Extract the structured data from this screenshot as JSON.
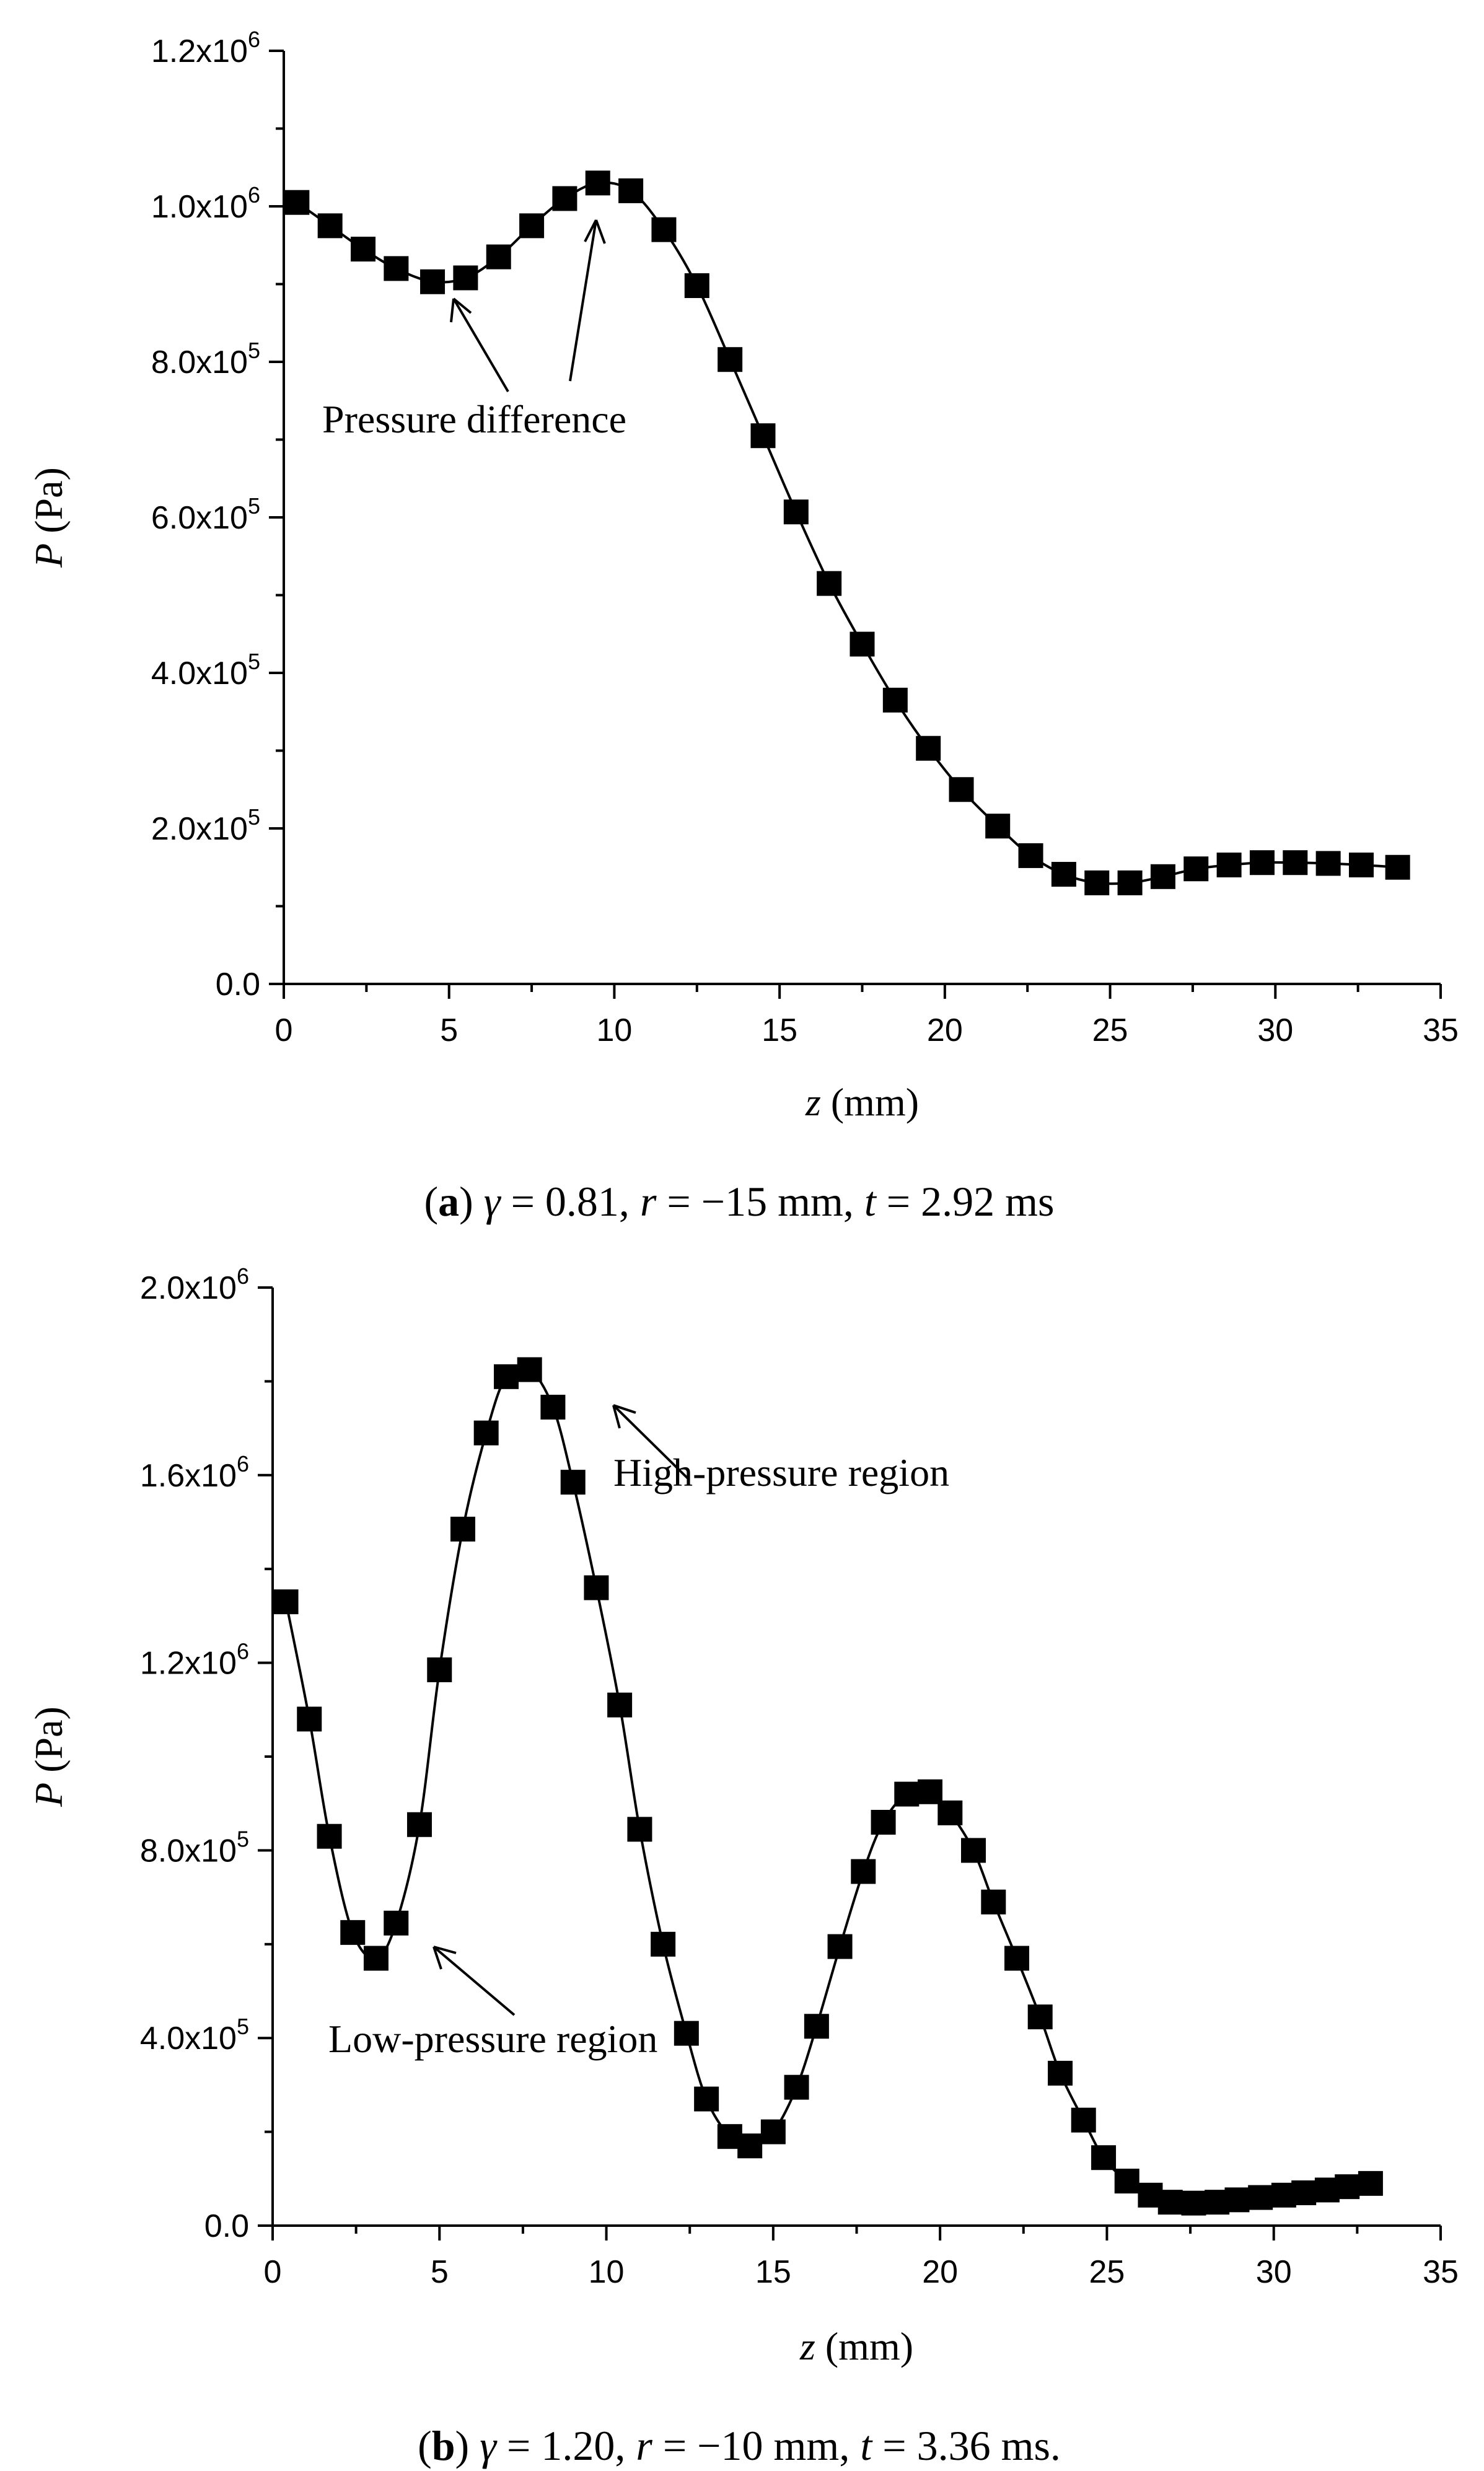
{
  "chart_data": [
    {
      "id": "a",
      "type": "line",
      "marker": "square",
      "xlabel": {
        "var": "z",
        "unit": " (mm)"
      },
      "ylabel": {
        "var": "P",
        "unit": " (Pa)"
      },
      "xlim": [
        0,
        35
      ],
      "ylim": [
        0,
        1200000
      ],
      "xticks": [
        0,
        5,
        10,
        15,
        20,
        25,
        30,
        35
      ],
      "yticks": [
        {
          "value": 0,
          "mant": "0.0",
          "exp": ""
        },
        {
          "value": 200000,
          "mant": "2.0x10",
          "exp": "5"
        },
        {
          "value": 400000,
          "mant": "4.0x10",
          "exp": "5"
        },
        {
          "value": 600000,
          "mant": "6.0x10",
          "exp": "5"
        },
        {
          "value": 800000,
          "mant": "8.0x10",
          "exp": "5"
        },
        {
          "value": 1000000,
          "mant": "1.0x10",
          "exp": "6"
        },
        {
          "value": 1200000,
          "mant": "1.2x10",
          "exp": "6"
        }
      ],
      "x": [
        0.4,
        1.4,
        2.4,
        3.4,
        4.5,
        5.5,
        6.5,
        7.5,
        8.5,
        9.5,
        10.5,
        11.5,
        12.5,
        13.5,
        14.5,
        15.5,
        16.5,
        17.5,
        18.5,
        19.5,
        20.5,
        21.6,
        22.6,
        23.6,
        24.6,
        25.6,
        26.6,
        27.6,
        28.6,
        29.6,
        30.6,
        31.6,
        32.6,
        33.7
      ],
      "y": [
        1005000,
        975000,
        945000,
        920000,
        903000,
        908000,
        935000,
        975000,
        1010000,
        1030000,
        1020000,
        970000,
        898000,
        803000,
        705000,
        607000,
        515000,
        437000,
        365000,
        303000,
        250000,
        203000,
        165000,
        141000,
        130000,
        130000,
        138000,
        148000,
        153000,
        156000,
        156000,
        155000,
        153000,
        150000
      ],
      "annotations": [
        {
          "text": "Pressure difference"
        }
      ],
      "caption": {
        "label": "a",
        "sym": "γ",
        "rest1": " = 0.81, ",
        "r": "r",
        "rest2": " = −15 mm, ",
        "t": "t",
        "rest3": " = 2.92 ms"
      }
    },
    {
      "id": "b",
      "type": "line",
      "marker": "square",
      "xlabel": {
        "var": "z",
        "unit": " (mm)"
      },
      "ylabel": {
        "var": "P",
        "unit": " (Pa)"
      },
      "xlim": [
        0,
        35
      ],
      "ylim": [
        0,
        2000000
      ],
      "xticks": [
        0,
        5,
        10,
        15,
        20,
        25,
        30,
        35
      ],
      "yticks": [
        {
          "value": 0,
          "mant": "0.0",
          "exp": ""
        },
        {
          "value": 400000,
          "mant": "4.0x10",
          "exp": "5"
        },
        {
          "value": 800000,
          "mant": "8.0x10",
          "exp": "5"
        },
        {
          "value": 1200000,
          "mant": "1.2x10",
          "exp": "6"
        },
        {
          "value": 1600000,
          "mant": "1.6x10",
          "exp": "6"
        },
        {
          "value": 2000000,
          "mant": "2.0x10",
          "exp": "6"
        }
      ],
      "x": [
        0.4,
        1.1,
        1.7,
        2.4,
        3.1,
        3.7,
        4.4,
        5.0,
        5.7,
        6.4,
        7.0,
        7.7,
        8.4,
        9.0,
        9.7,
        10.4,
        11.0,
        11.7,
        12.4,
        13.0,
        13.7,
        14.3,
        15.0,
        15.7,
        16.3,
        17.0,
        17.7,
        18.3,
        19.0,
        19.7,
        20.3,
        21.0,
        21.6,
        22.3,
        23.0,
        23.6,
        24.3,
        24.9,
        25.6,
        26.3,
        26.9,
        27.6,
        28.3,
        28.9,
        29.6,
        30.3,
        30.9,
        31.6,
        32.2,
        32.9
      ],
      "y": [
        1330000,
        1080000,
        830000,
        625000,
        570000,
        645000,
        855000,
        1185000,
        1485000,
        1690000,
        1810000,
        1825000,
        1745000,
        1585000,
        1360000,
        1110000,
        845000,
        600000,
        410000,
        270000,
        190000,
        170000,
        200000,
        295000,
        425000,
        595000,
        755000,
        860000,
        920000,
        925000,
        880000,
        800000,
        690000,
        570000,
        445000,
        325000,
        225000,
        145000,
        95000,
        65000,
        50000,
        48000,
        50000,
        55000,
        60000,
        65000,
        70000,
        76000,
        83000,
        90000
      ],
      "annotations": [
        {
          "text": "High-pressure region"
        },
        {
          "text": "Low-pressure region"
        }
      ],
      "caption": {
        "label": "b",
        "sym": "γ",
        "rest1": " = 1.20, ",
        "r": "r",
        "rest2": " = −10 mm, ",
        "t": "t",
        "rest3": " = 3.36 ms."
      }
    }
  ]
}
